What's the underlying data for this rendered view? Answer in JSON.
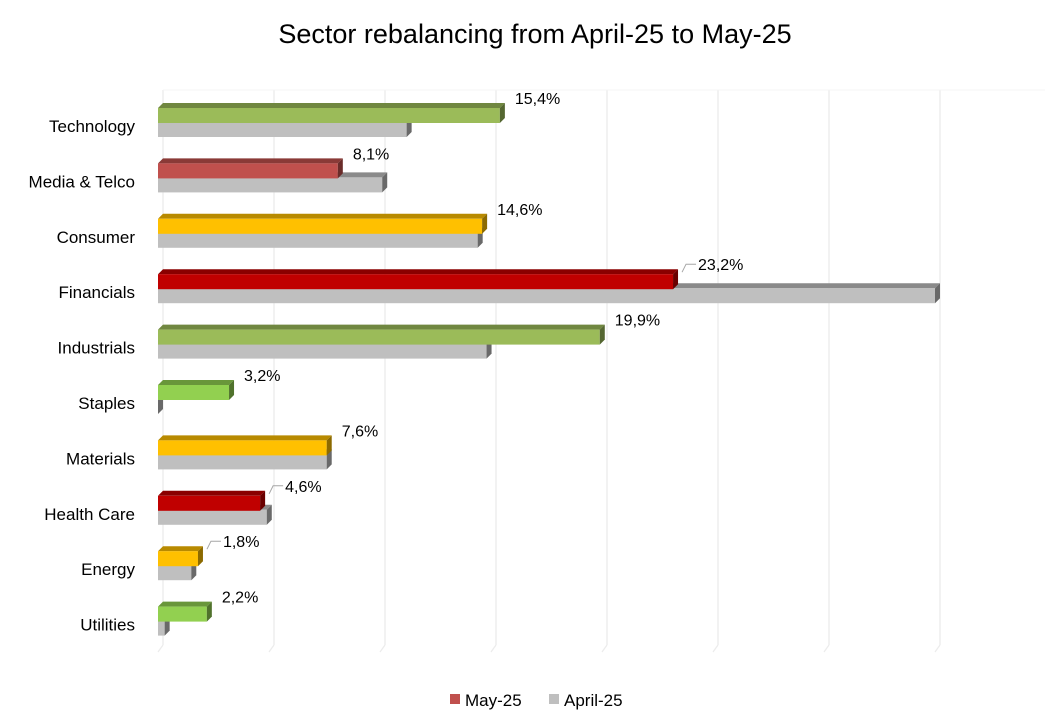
{
  "chart_data": {
    "type": "bar",
    "orientation": "horizontal",
    "style": "3d-clustered",
    "title": "Sector rebalancing from April-25 to May-25",
    "xlabel": "",
    "ylabel": "",
    "xlim": [
      0,
      35
    ],
    "grid": true,
    "legend_position": "bottom",
    "categories": [
      "Technology",
      "Media & Telco",
      "Consumer",
      "Financials",
      "Industrials",
      "Staples",
      "Materials",
      "Health Care",
      "Energy",
      "Utilities"
    ],
    "series": [
      {
        "name": "May-25",
        "legend_color": "#c0504d",
        "values": [
          15.4,
          8.1,
          14.6,
          23.2,
          19.9,
          3.2,
          7.6,
          4.6,
          1.8,
          2.2
        ],
        "labels": [
          "15,4%",
          "8,1%",
          "14,6%",
          "23,2%",
          "19,9%",
          "3,2%",
          "7,6%",
          "4,6%",
          "1,8%",
          "2,2%"
        ],
        "bar_colors": [
          "#9bbb59",
          "#c0504d",
          "#ffc000",
          "#c00000",
          "#9bbb59",
          "#92d050",
          "#ffc000",
          "#c00000",
          "#ffc000",
          "#92d050"
        ]
      },
      {
        "name": "April-25",
        "legend_color": "#bfbfbf",
        "values": [
          11.2,
          10.1,
          14.4,
          35.0,
          14.8,
          0.0,
          7.6,
          4.9,
          1.5,
          0.3
        ],
        "bar_colors": [
          "#bfbfbf",
          "#bfbfbf",
          "#bfbfbf",
          "#bfbfbf",
          "#bfbfbf",
          "#bfbfbf",
          "#bfbfbf",
          "#bfbfbf",
          "#bfbfbf",
          "#bfbfbf"
        ]
      }
    ]
  }
}
